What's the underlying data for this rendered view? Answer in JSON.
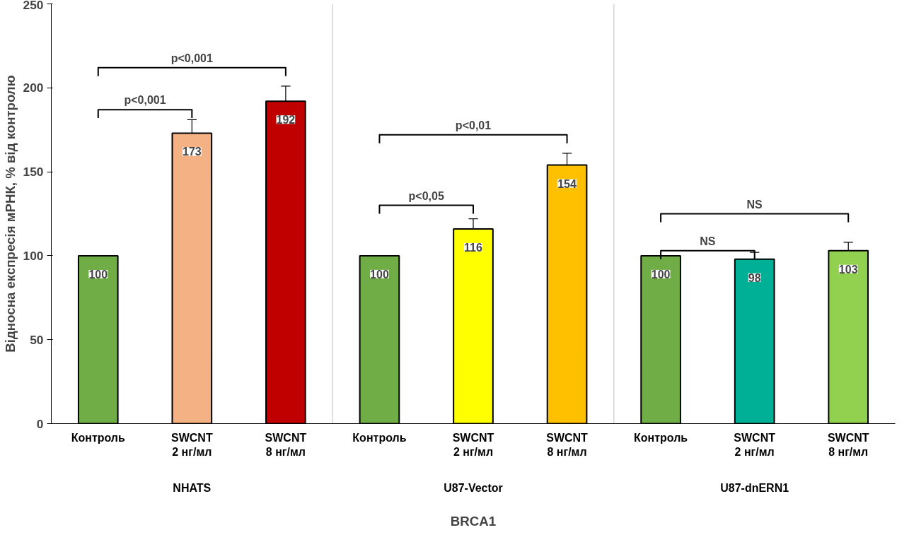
{
  "chart_data": {
    "type": "bar",
    "xlabel": "BRCA1",
    "ylabel": "Відносна експресія мРНК, % від контролю",
    "categories": [
      "Контроль",
      "SWCNT 2 нг/мл",
      "SWCNT 8 нг/мл",
      "Контроль",
      "SWCNT 2 нг/мл",
      "SWCNT 8 нг/мл",
      "Контроль",
      "SWCNT 2 нг/мл",
      "SWCNT 8 нг/мл"
    ],
    "values": [
      100,
      173,
      192,
      100,
      116,
      154,
      100,
      98,
      103
    ],
    "colors": [
      "#70ad47",
      "#f4b183",
      "#c00000",
      "#70ad47",
      "#ffff00",
      "#ffc000",
      "#70ad47",
      "#00b096",
      "#92d050"
    ],
    "errors": [
      null,
      8,
      9,
      null,
      6,
      7,
      null,
      4,
      5
    ],
    "data_labels": true,
    "ylim": [
      0,
      250
    ],
    "yticks": [
      0,
      50,
      100,
      150,
      200,
      250
    ],
    "grid": false,
    "annotations": [
      "NHATS",
      "U87-Vector",
      "U87-dnERN1",
      "p<0,001",
      "p<0,001",
      "p<0,05",
      "p<0,01",
      "NS",
      "NS"
    ]
  }
}
